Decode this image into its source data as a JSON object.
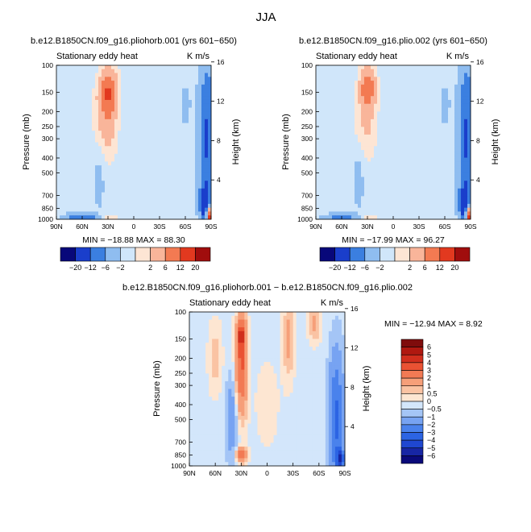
{
  "figure": {
    "title": "JJA"
  },
  "chart_data": [
    {
      "type": "heatmap",
      "title": "b.e12.B1850CN.f09_g16.pliohorb.001 (yrs 601−650)",
      "subtitle_left": "Stationary eddy heat",
      "subtitle_right": "K m/s",
      "xlabel": "",
      "ylabel": "Pressure (mb)",
      "ylabel_right": "Height (km)",
      "x_ticks": [
        "90N",
        "60N",
        "30N",
        "0",
        "30S",
        "60S",
        "90S"
      ],
      "y_ticks": [
        "100",
        "150",
        "200",
        "250",
        "300",
        "400",
        "500",
        "700",
        "850",
        "1000"
      ],
      "y_right_ticks": [
        "16",
        "12",
        "8",
        "4"
      ],
      "stats": "MIN = −18.88   MAX =  88.30",
      "colorbar_labels": [
        "−20",
        "−12",
        "−6",
        "−2",
        "2",
        "6",
        "12",
        "20"
      ],
      "features": [
        {
          "lat": 30,
          "p": 150,
          "rlat": 7,
          "rlogp": 0.22,
          "v": 12
        },
        {
          "lat": 35,
          "p": 250,
          "rlat": 8,
          "rlogp": 0.35,
          "v": 4
        },
        {
          "lat": 25,
          "p": 200,
          "rlat": 6,
          "rlogp": 0.45,
          "v": 2
        },
        {
          "lat": -85,
          "p": 300,
          "rlat": 6,
          "rlogp": 0.75,
          "v": -12
        },
        {
          "lat": -83,
          "p": 800,
          "rlat": 4,
          "rlogp": 0.2,
          "v": -14
        },
        {
          "lat": -88,
          "p": 950,
          "rlat": 3,
          "rlogp": 0.1,
          "v": 22
        },
        {
          "lat": 60,
          "p": 1000,
          "rlat": 12,
          "rlogp": 0.05,
          "v": -12
        },
        {
          "lat": 30,
          "p": 1000,
          "rlat": 8,
          "rlogp": 0.05,
          "v": 4
        },
        {
          "lat": 40,
          "p": 500,
          "rlat": 5,
          "rlogp": 0.45,
          "v": -2
        },
        {
          "lat": 75,
          "p": 300,
          "rlat": 10,
          "rlogp": 0.35,
          "v": 0.8
        },
        {
          "lat": -40,
          "p": 300,
          "rlat": 6,
          "rlogp": 0.6,
          "v": 0.8
        },
        {
          "lat": -60,
          "p": 180,
          "rlat": 6,
          "rlogp": 0.3,
          "v": -1.5
        }
      ],
      "levels": [
        -20,
        -12,
        -6,
        -2,
        0,
        2,
        6,
        12,
        20
      ]
    },
    {
      "type": "heatmap",
      "title": "b.e12.B1850CN.f09_g16.plio.002 (yrs 601−650)",
      "subtitle_left": "Stationary eddy heat",
      "subtitle_right": "K m/s",
      "xlabel": "",
      "ylabel": "Pressure (mb)",
      "ylabel_right": "Height (km)",
      "x_ticks": [
        "90N",
        "60N",
        "30N",
        "0",
        "30S",
        "60S",
        "90S"
      ],
      "y_ticks": [
        "100",
        "150",
        "200",
        "250",
        "300",
        "400",
        "500",
        "700",
        "850",
        "1000"
      ],
      "y_right_ticks": [
        "16",
        "12",
        "8",
        "4"
      ],
      "stats": "MIN = −17.99   MAX =  96.27",
      "colorbar_labels": [
        "−20",
        "−12",
        "−6",
        "−2",
        "2",
        "6",
        "12",
        "20"
      ],
      "features": [
        {
          "lat": 30,
          "p": 140,
          "rlat": 6,
          "rlogp": 0.2,
          "v": 10
        },
        {
          "lat": 35,
          "p": 250,
          "rlat": 8,
          "rlogp": 0.35,
          "v": 3
        },
        {
          "lat": 25,
          "p": 200,
          "rlat": 6,
          "rlogp": 0.45,
          "v": 1.5
        },
        {
          "lat": -85,
          "p": 300,
          "rlat": 6,
          "rlogp": 0.75,
          "v": -12
        },
        {
          "lat": -83,
          "p": 800,
          "rlat": 4,
          "rlogp": 0.2,
          "v": -14
        },
        {
          "lat": -88,
          "p": 950,
          "rlat": 3,
          "rlogp": 0.1,
          "v": 22
        },
        {
          "lat": 60,
          "p": 1000,
          "rlat": 12,
          "rlogp": 0.05,
          "v": -10
        },
        {
          "lat": 30,
          "p": 1000,
          "rlat": 8,
          "rlogp": 0.05,
          "v": 3
        },
        {
          "lat": 40,
          "p": 500,
          "rlat": 5,
          "rlogp": 0.45,
          "v": -2
        },
        {
          "lat": 75,
          "p": 300,
          "rlat": 10,
          "rlogp": 0.35,
          "v": 0.8
        },
        {
          "lat": -40,
          "p": 300,
          "rlat": 6,
          "rlogp": 0.6,
          "v": 0.8
        },
        {
          "lat": -60,
          "p": 180,
          "rlat": 6,
          "rlogp": 0.3,
          "v": -1.5
        }
      ],
      "levels": [
        -20,
        -12,
        -6,
        -2,
        0,
        2,
        6,
        12,
        20
      ]
    },
    {
      "type": "heatmap",
      "title": "b.e12.B1850CN.f09_g16.pliohorb.001 − b.e12.B1850CN.f09_g16.plio.002",
      "subtitle_left": "Stationary eddy heat",
      "subtitle_right": "K m/s",
      "xlabel": "",
      "ylabel": "Pressure (mb)",
      "ylabel_right": "Height (km)",
      "x_ticks": [
        "90N",
        "60N",
        "30N",
        "0",
        "30S",
        "60S",
        "90S"
      ],
      "y_ticks": [
        "100",
        "150",
        "200",
        "250",
        "300",
        "400",
        "500",
        "700",
        "850",
        "1000"
      ],
      "y_right_ticks": [
        "16",
        "12",
        "8",
        "4"
      ],
      "stats": "MIN = −12.94   MAX =   8.92",
      "colorbar_labels": [
        "6",
        "5",
        "4",
        "3",
        "2",
        "1",
        "0.5",
        "0",
        "−0.5",
        "−1",
        "−2",
        "−3",
        "−4",
        "−5",
        "−6"
      ],
      "features": [
        {
          "lat": 30,
          "p": 230,
          "rlat": 5,
          "rlogp": 0.55,
          "v": 3.5
        },
        {
          "lat": 30,
          "p": 140,
          "rlat": 4,
          "rlogp": 0.15,
          "v": 2.5
        },
        {
          "lat": -25,
          "p": 150,
          "rlat": 5,
          "rlogp": 0.45,
          "v": 1.5
        },
        {
          "lat": -55,
          "p": 120,
          "rlat": 5,
          "rlogp": 0.2,
          "v": 1.5
        },
        {
          "lat": -80,
          "p": 500,
          "rlat": 6,
          "rlogp": 0.7,
          "v": -3
        },
        {
          "lat": 40,
          "p": 500,
          "rlat": 5,
          "rlogp": 0.5,
          "v": -1.5
        },
        {
          "lat": 30,
          "p": 850,
          "rlat": 5,
          "rlogp": 0.08,
          "v": 3
        },
        {
          "lat": -85,
          "p": 900,
          "rlat": 3,
          "rlogp": 0.1,
          "v": -4
        },
        {
          "lat": 60,
          "p": 200,
          "rlat": 6,
          "rlogp": 0.4,
          "v": 1
        },
        {
          "lat": 0,
          "p": 400,
          "rlat": 10,
          "rlogp": 0.5,
          "v": 0.6
        }
      ],
      "levels": [
        -6,
        -5,
        -4,
        -3,
        -2,
        -1,
        -0.5,
        0,
        0.5,
        1,
        2,
        3,
        4,
        5,
        6
      ]
    }
  ],
  "colors": {
    "panel_scale": [
      "#08087a",
      "#1a3ecb",
      "#3b7fe0",
      "#8fbdf0",
      "#d0e6fa",
      "#fde5d4",
      "#f9b59a",
      "#f37a52",
      "#e2391f",
      "#a00d0d"
    ],
    "diff_scale": [
      "#0a0a7a",
      "#1726a4",
      "#1f47d0",
      "#2c64e3",
      "#4a82ec",
      "#77a3f2",
      "#a4c5f6",
      "#d3e6fb",
      "#fde6d2",
      "#fac3a3",
      "#f69f79",
      "#f27a54",
      "#ea5233",
      "#d12e1d",
      "#b01810",
      "#7f0c0c"
    ]
  }
}
